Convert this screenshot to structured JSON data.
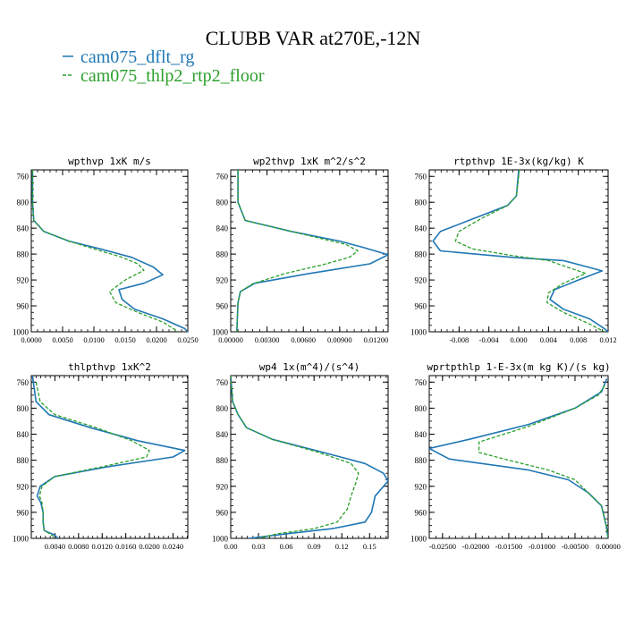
{
  "figure": {
    "title": "CLUBB VAR at270E,-12N",
    "legend": [
      {
        "label": "cam075_dflt_rg",
        "color": "#1f77b4",
        "dash": "solid"
      },
      {
        "label": "cam075_thlp2_rtp2_floor",
        "color": "#2ca02c",
        "dash": "dashed"
      }
    ]
  },
  "chart_data": [
    {
      "type": "line",
      "title": "wpthvp  1xK m/s",
      "xlim": [
        0.0,
        0.025
      ],
      "ylim": [
        1000,
        750
      ],
      "xticks": [
        0.0,
        0.005,
        0.01,
        0.015,
        0.02,
        0.025
      ],
      "xtick_labels": [
        "0.0000",
        "0.0050",
        "0.0100",
        "0.0150",
        "0.0200",
        "0.0250"
      ],
      "yticks": [
        760,
        800,
        840,
        880,
        920,
        960,
        1000
      ],
      "ytick_labels": [
        "760",
        "800",
        "840",
        "880",
        "920",
        "960",
        "1000"
      ],
      "series": [
        {
          "name": "cam075_dflt_rg",
          "points": [
            [
              0.0002,
              750
            ],
            [
              0.0002,
              800
            ],
            [
              0.0004,
              828
            ],
            [
              0.002,
              845
            ],
            [
              0.006,
              860
            ],
            [
              0.011,
              872
            ],
            [
              0.016,
              885
            ],
            [
              0.0195,
              900
            ],
            [
              0.021,
              912
            ],
            [
              0.018,
              925
            ],
            [
              0.014,
              935
            ],
            [
              0.0145,
              950
            ],
            [
              0.0165,
              965
            ],
            [
              0.021,
              980
            ],
            [
              0.0245,
              995
            ],
            [
              0.025,
              1000
            ]
          ]
        },
        {
          "name": "cam075_thlp2_rtp2_floor",
          "points": [
            [
              0.0002,
              750
            ],
            [
              0.0002,
              800
            ],
            [
              0.0004,
              828
            ],
            [
              0.002,
              845
            ],
            [
              0.006,
              860
            ],
            [
              0.01,
              872
            ],
            [
              0.0145,
              885
            ],
            [
              0.017,
              895
            ],
            [
              0.018,
              905
            ],
            [
              0.015,
              920
            ],
            [
              0.0125,
              938
            ],
            [
              0.0135,
              955
            ],
            [
              0.017,
              970
            ],
            [
              0.021,
              985
            ],
            [
              0.0235,
              1000
            ]
          ]
        }
      ]
    },
    {
      "type": "line",
      "title": "wp2thvp  1xK m^2/s^2",
      "xlim": [
        0.0,
        0.013
      ],
      "ylim": [
        1000,
        750
      ],
      "xticks": [
        0.0,
        0.003,
        0.006,
        0.009,
        0.012
      ],
      "xtick_labels": [
        "0.00000",
        "0.00300",
        "0.00600",
        "0.00900",
        "0.01200"
      ],
      "yticks": [
        760,
        800,
        840,
        880,
        920,
        960,
        1000
      ],
      "ytick_labels": [
        "760",
        "800",
        "840",
        "880",
        "920",
        "960",
        "1000"
      ],
      "series": [
        {
          "name": "cam075_dflt_rg",
          "points": [
            [
              0.0006,
              750
            ],
            [
              0.0006,
              800
            ],
            [
              0.0012,
              828
            ],
            [
              0.005,
              845
            ],
            [
              0.009,
              860
            ],
            [
              0.011,
              870
            ],
            [
              0.013,
              881
            ],
            [
              0.0115,
              895
            ],
            [
              0.0065,
              910
            ],
            [
              0.002,
              925
            ],
            [
              0.0008,
              938
            ],
            [
              0.0006,
              955
            ],
            [
              0.0005,
              1000
            ]
          ]
        },
        {
          "name": "cam075_thlp2_rtp2_floor",
          "points": [
            [
              0.0006,
              750
            ],
            [
              0.0006,
              800
            ],
            [
              0.0012,
              828
            ],
            [
              0.005,
              845
            ],
            [
              0.0095,
              865
            ],
            [
              0.0105,
              875
            ],
            [
              0.0098,
              885
            ],
            [
              0.0075,
              897
            ],
            [
              0.0045,
              910
            ],
            [
              0.0018,
              926
            ],
            [
              0.0008,
              938
            ],
            [
              0.0006,
              955
            ],
            [
              0.0005,
              1000
            ]
          ]
        }
      ]
    },
    {
      "type": "line",
      "title": "rtpthvp  1E-3x(kg/kg) K",
      "xlim": [
        -0.012,
        0.012
      ],
      "ylim": [
        1000,
        750
      ],
      "xticks": [
        -0.008,
        -0.004,
        0.0,
        0.004,
        0.008,
        0.012
      ],
      "xtick_labels": [
        "-0.008",
        "-0.004",
        "0.000",
        "0.004",
        "0.008",
        "0.012"
      ],
      "yticks": [
        760,
        800,
        840,
        880,
        920,
        960,
        1000
      ],
      "ytick_labels": [
        "760",
        "800",
        "840",
        "880",
        "920",
        "960",
        "1000"
      ],
      "series": [
        {
          "name": "cam075_dflt_rg",
          "points": [
            [
              0.0,
              750
            ],
            [
              -0.0003,
              790
            ],
            [
              -0.0015,
              805
            ],
            [
              -0.006,
              825
            ],
            [
              -0.0105,
              845
            ],
            [
              -0.0115,
              860
            ],
            [
              -0.0105,
              875
            ],
            [
              -0.001,
              885
            ],
            [
              0.006,
              890
            ],
            [
              0.0112,
              906
            ],
            [
              0.008,
              920
            ],
            [
              0.0048,
              935
            ],
            [
              0.0042,
              950
            ],
            [
              0.006,
              965
            ],
            [
              0.0095,
              980
            ],
            [
              0.0115,
              995
            ],
            [
              0.012,
              1000
            ]
          ]
        },
        {
          "name": "cam075_thlp2_rtp2_floor",
          "points": [
            [
              0.0001,
              750
            ],
            [
              -0.0003,
              790
            ],
            [
              -0.0015,
              805
            ],
            [
              -0.005,
              825
            ],
            [
              -0.008,
              845
            ],
            [
              -0.0085,
              860
            ],
            [
              -0.0062,
              872
            ],
            [
              -0.001,
              882
            ],
            [
              0.004,
              890
            ],
            [
              0.009,
              910
            ],
            [
              0.006,
              925
            ],
            [
              0.004,
              940
            ],
            [
              0.0038,
              955
            ],
            [
              0.006,
              970
            ],
            [
              0.0095,
              988
            ],
            [
              0.0115,
              1000
            ]
          ]
        }
      ]
    },
    {
      "type": "line",
      "title": "thlpthvp  1xK^2",
      "xlim": [
        0.0,
        0.0265
      ],
      "ylim": [
        1000,
        750
      ],
      "xticks": [
        0.004,
        0.008,
        0.012,
        0.016,
        0.02,
        0.024
      ],
      "xtick_labels": [
        "0.0040",
        "0.0080",
        "0.0120",
        "0.0160",
        "0.0200",
        "0.0240"
      ],
      "yticks": [
        760,
        800,
        840,
        880,
        920,
        960,
        1000
      ],
      "ytick_labels": [
        "760",
        "800",
        "840",
        "880",
        "920",
        "960",
        "1000"
      ],
      "series": [
        {
          "name": "cam075_dflt_rg",
          "points": [
            [
              0.0002,
              750
            ],
            [
              0.0008,
              790
            ],
            [
              0.003,
              810
            ],
            [
              0.01,
              830
            ],
            [
              0.018,
              850
            ],
            [
              0.026,
              865
            ],
            [
              0.024,
              875
            ],
            [
              0.013,
              890
            ],
            [
              0.004,
              905
            ],
            [
              0.0015,
              920
            ],
            [
              0.001,
              935
            ],
            [
              0.0016,
              945
            ],
            [
              0.002,
              960
            ],
            [
              0.002,
              975
            ],
            [
              0.0022,
              988
            ],
            [
              0.004,
              995
            ],
            [
              0.0045,
              1000
            ]
          ]
        },
        {
          "name": "cam075_thlp2_rtp2_floor",
          "points": [
            [
              0.0008,
              760
            ],
            [
              0.0015,
              790
            ],
            [
              0.004,
              810
            ],
            [
              0.011,
              830
            ],
            [
              0.017,
              850
            ],
            [
              0.02,
              865
            ],
            [
              0.0195,
              875
            ],
            [
              0.012,
              890
            ],
            [
              0.004,
              905
            ],
            [
              0.0018,
              920
            ],
            [
              0.0014,
              935
            ],
            [
              0.0018,
              945
            ],
            [
              0.002,
              960
            ],
            [
              0.002,
              975
            ],
            [
              0.0022,
              988
            ],
            [
              0.0035,
              995
            ],
            [
              0.004,
              1000
            ]
          ]
        }
      ]
    },
    {
      "type": "line",
      "title": "wp4  1x(m^4)/(s^4)",
      "xlim": [
        0.0,
        0.17
      ],
      "ylim": [
        1000,
        750
      ],
      "xticks": [
        0.0,
        0.03,
        0.06,
        0.09,
        0.12,
        0.15
      ],
      "xtick_labels": [
        "0.00",
        "0.03",
        "0.06",
        "0.09",
        "0.12",
        "0.15"
      ],
      "yticks": [
        760,
        800,
        840,
        880,
        920,
        960,
        1000
      ],
      "ytick_labels": [
        "760",
        "800",
        "840",
        "880",
        "920",
        "960",
        "1000"
      ],
      "series": [
        {
          "name": "cam075_dflt_rg",
          "points": [
            [
              0.0,
              750
            ],
            [
              0.002,
              790
            ],
            [
              0.008,
              810
            ],
            [
              0.017,
              830
            ],
            [
              0.045,
              848
            ],
            [
              0.1,
              868
            ],
            [
              0.145,
              885
            ],
            [
              0.165,
              900
            ],
            [
              0.17,
              912
            ],
            [
              0.156,
              935
            ],
            [
              0.152,
              960
            ],
            [
              0.145,
              975
            ],
            [
              0.11,
              985
            ],
            [
              0.06,
              993
            ],
            [
              0.02,
              1000
            ]
          ]
        },
        {
          "name": "cam075_thlp2_rtp2_floor",
          "points": [
            [
              0.0,
              750
            ],
            [
              0.002,
              790
            ],
            [
              0.008,
              810
            ],
            [
              0.017,
              830
            ],
            [
              0.045,
              848
            ],
            [
              0.095,
              868
            ],
            [
              0.13,
              885
            ],
            [
              0.138,
              900
            ],
            [
              0.135,
              915
            ],
            [
              0.13,
              935
            ],
            [
              0.126,
              955
            ],
            [
              0.115,
              975
            ],
            [
              0.09,
              985
            ],
            [
              0.05,
              993
            ],
            [
              0.03,
              1000
            ]
          ]
        }
      ]
    },
    {
      "type": "line",
      "title": "wprtpthlp  1-E-3x(m kg K)/(s kg)",
      "xlim": [
        -0.027,
        0.0
      ],
      "ylim": [
        1000,
        750
      ],
      "xticks": [
        -0.025,
        -0.02,
        -0.015,
        -0.01,
        -0.005,
        0.0
      ],
      "xtick_labels": [
        "-0.02500",
        "-0.02000",
        "-0.01500",
        "-0.01000",
        "-0.00500",
        "0.00000"
      ],
      "yticks": [
        760,
        800,
        840,
        880,
        920,
        960,
        1000
      ],
      "ytick_labels": [
        "760",
        "800",
        "840",
        "880",
        "920",
        "960",
        "1000"
      ],
      "series": [
        {
          "name": "cam075_dflt_rg",
          "points": [
            [
              -0.0002,
              755
            ],
            [
              -0.001,
              775
            ],
            [
              -0.005,
              800
            ],
            [
              -0.012,
              825
            ],
            [
              -0.021,
              848
            ],
            [
              -0.027,
              862
            ],
            [
              -0.024,
              878
            ],
            [
              -0.012,
              895
            ],
            [
              -0.006,
              910
            ],
            [
              -0.003,
              930
            ],
            [
              -0.001,
              950
            ],
            [
              -0.0003,
              980
            ],
            [
              0.0,
              1000
            ]
          ]
        },
        {
          "name": "cam075_thlp2_rtp2_floor",
          "points": [
            [
              -0.0005,
              765
            ],
            [
              -0.0015,
              780
            ],
            [
              -0.005,
              800
            ],
            [
              -0.012,
              828
            ],
            [
              -0.0195,
              852
            ],
            [
              -0.0195,
              868
            ],
            [
              -0.015,
              880
            ],
            [
              -0.009,
              895
            ],
            [
              -0.005,
              910
            ],
            [
              -0.003,
              930
            ],
            [
              -0.001,
              950
            ],
            [
              -0.0003,
              980
            ],
            [
              0.0,
              1000
            ]
          ]
        }
      ]
    }
  ]
}
